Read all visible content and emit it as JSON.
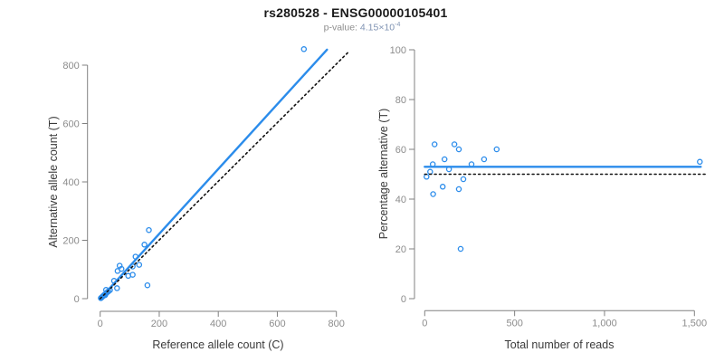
{
  "figure": {
    "title": "rs280528 - ENSG00000105401",
    "pvalue_label": "p-value:",
    "pvalue_mantissa": "4.15×10",
    "pvalue_exponent": "-4"
  },
  "colors": {
    "accent_blue": "#2b8ceb",
    "dotted_line_black": "#111111",
    "axis_gray": "#808080",
    "tick_label_gray": "#8c8c8c",
    "axis_title_color": "#3a3a3a",
    "title_color": "#1a1a1a",
    "subtitle_gray": "#8e8e8e"
  },
  "chart_data": [
    {
      "type": "scatter",
      "name": "alt-vs-ref-allele-count",
      "xlabel": "Reference allele count (C)",
      "ylabel": "Alternative allele count (T)",
      "xlim": [
        0,
        870
      ],
      "ylim": [
        0,
        870
      ],
      "xticks": [
        0,
        200,
        400,
        600,
        800
      ],
      "xtick_labels": [
        "0",
        "200",
        "400",
        "600",
        "800"
      ],
      "yticks": [
        0,
        200,
        400,
        600,
        800
      ],
      "ytick_labels": [
        "0",
        "200",
        "400",
        "600",
        "800"
      ],
      "grid": false,
      "points": [
        [
          2,
          2
        ],
        [
          5,
          4
        ],
        [
          8,
          7
        ],
        [
          11,
          10
        ],
        [
          14,
          13
        ],
        [
          17,
          12
        ],
        [
          20,
          18
        ],
        [
          24,
          22
        ],
        [
          28,
          25
        ],
        [
          33,
          29
        ],
        [
          20,
          30
        ],
        [
          47,
          61
        ],
        [
          57,
          36
        ],
        [
          59,
          95
        ],
        [
          66,
          113
        ],
        [
          72,
          102
        ],
        [
          95,
          78
        ],
        [
          110,
          82
        ],
        [
          110,
          110
        ],
        [
          120,
          144
        ],
        [
          132,
          116
        ],
        [
          150,
          185
        ],
        [
          160,
          46
        ],
        [
          165,
          235
        ],
        [
          690,
          855
        ]
      ],
      "lines": [
        {
          "name": "fit-line",
          "style": "solid",
          "color": "#2b8ceb",
          "from": [
            0,
            0
          ],
          "to": [
            768,
            853
          ]
        },
        {
          "name": "identity-line",
          "style": "dotted",
          "color": "#111111",
          "from": [
            0,
            0
          ],
          "to": [
            843,
            847
          ]
        }
      ]
    },
    {
      "type": "scatter",
      "name": "percentage-alt-vs-total-reads",
      "xlabel": "Total number of reads",
      "ylabel": "Percentage alternative (T)",
      "xlim": [
        0,
        1560
      ],
      "ylim": [
        0,
        100
      ],
      "xticks": [
        0,
        500,
        1000,
        1500
      ],
      "xtick_labels": [
        "0",
        "500",
        "1,000",
        "1,500"
      ],
      "yticks": [
        0,
        20,
        40,
        60,
        80,
        100
      ],
      "ytick_labels": [
        "0",
        "20",
        "40",
        "60",
        "80",
        "100"
      ],
      "grid": false,
      "points": [
        [
          10,
          49
        ],
        [
          30,
          51
        ],
        [
          45,
          54
        ],
        [
          47,
          42
        ],
        [
          55,
          62
        ],
        [
          100,
          45
        ],
        [
          110,
          56
        ],
        [
          135,
          52
        ],
        [
          165,
          62
        ],
        [
          190,
          60
        ],
        [
          190,
          44
        ],
        [
          200,
          20
        ],
        [
          215,
          48
        ],
        [
          260,
          54
        ],
        [
          330,
          56
        ],
        [
          400,
          60
        ],
        [
          1530,
          55
        ]
      ],
      "lines": [
        {
          "name": "mean-line",
          "style": "solid",
          "color": "#2b8ceb",
          "from": [
            0,
            53
          ],
          "to": [
            1535,
            53
          ]
        },
        {
          "name": "reference-line",
          "style": "dotted",
          "color": "#111111",
          "from": [
            0,
            50
          ],
          "to": [
            1560,
            50
          ]
        }
      ]
    }
  ]
}
